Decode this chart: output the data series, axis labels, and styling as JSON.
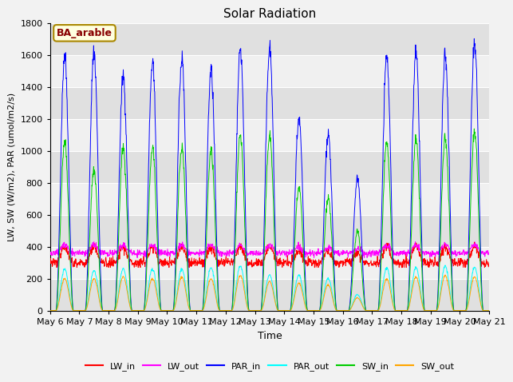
{
  "title": "Solar Radiation",
  "ylabel": "LW, SW (W/m2), PAR (umol/m2/s)",
  "xlabel": "Time",
  "annotation": "BA_arable",
  "ylim": [
    0,
    1800
  ],
  "yticks": [
    0,
    200,
    400,
    600,
    800,
    1000,
    1200,
    1400,
    1600,
    1800
  ],
  "xtick_labels": [
    "May 6",
    "May 7",
    "May 8",
    "May 9",
    "May 10",
    "May 11",
    "May 12",
    "May 13",
    "May 14",
    "May 15",
    "May 16",
    "May 17",
    "May 18",
    "May 19",
    "May 20",
    "May 21"
  ],
  "num_days": 15,
  "fig_bg_color": "#f2f2f2",
  "plot_bg_color": "#ffffff",
  "band_color_light": "#f0f0f0",
  "band_color_dark": "#e0e0e0",
  "legend_entries": [
    "LW_in",
    "LW_out",
    "PAR_in",
    "PAR_out",
    "SW_in",
    "SW_out"
  ],
  "legend_colors": [
    "#ff0000",
    "#ff00ff",
    "#0000ff",
    "#00ffff",
    "#00cc00",
    "#ffa500"
  ],
  "annotation_bg": "#ffffe0",
  "annotation_edge": "#aa8800",
  "annotation_text_color": "#880000",
  "par_in_peaks": [
    1600,
    1620,
    1470,
    1540,
    1580,
    1500,
    1640,
    1650,
    1200,
    1110,
    830,
    1590,
    1600,
    1600,
    1660
  ],
  "sw_in_peaks": [
    1060,
    880,
    1020,
    1010,
    1020,
    1000,
    1100,
    1100,
    770,
    710,
    500,
    1050,
    1060,
    1080,
    1110
  ],
  "par_out_peaks": [
    260,
    250,
    260,
    260,
    260,
    270,
    280,
    220,
    220,
    200,
    100,
    270,
    270,
    280,
    270
  ],
  "sw_out_peaks": [
    200,
    200,
    210,
    200,
    210,
    200,
    220,
    180,
    170,
    160,
    80,
    200,
    210,
    220,
    210
  ]
}
